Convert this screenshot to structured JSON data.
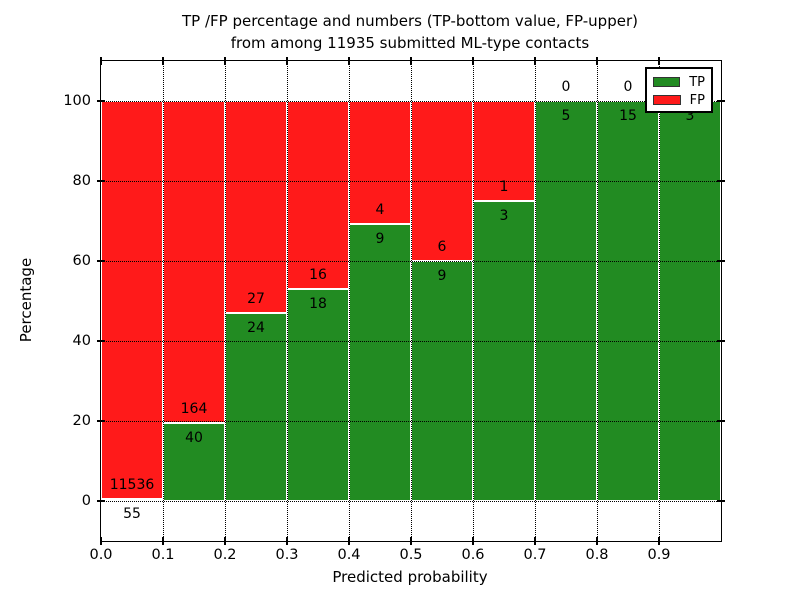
{
  "title": {
    "line1": "TP /FP percentage and numbers (TP-bottom value, FP-upper)",
    "line2": "from among 11935 submitted ML-type contacts"
  },
  "axis": {
    "xlabel": "Predicted probability",
    "ylabel": "Percentage"
  },
  "legend": {
    "tp_label": "TP",
    "fp_label": "FP"
  },
  "colors": {
    "tp_green": "#228B22",
    "fp_red": "#FF1A1A",
    "grid": "#000000",
    "bar_edge": "#ffffff"
  },
  "chart_data": {
    "type": "bar",
    "stacked": true,
    "normalized": "percent of bin total",
    "title": "TP /FP percentage and numbers (TP-bottom value, FP-upper) from among 11935 submitted ML-type contacts",
    "xlabel": "Predicted probability",
    "ylabel": "Percentage",
    "total_contacts": 11935,
    "categories": [
      "0.0-0.1",
      "0.1-0.2",
      "0.2-0.3",
      "0.3-0.4",
      "0.4-0.5",
      "0.5-0.6",
      "0.6-0.7",
      "0.7-0.8",
      "0.8-0.9",
      "0.9-1.0"
    ],
    "bin_edges": [
      0.0,
      0.1,
      0.2,
      0.3,
      0.4,
      0.5,
      0.6,
      0.7,
      0.8,
      0.9,
      1.0
    ],
    "series": [
      {
        "name": "TP",
        "color": "#228B22",
        "counts": [
          55,
          40,
          24,
          18,
          9,
          9,
          3,
          5,
          15,
          3
        ]
      },
      {
        "name": "FP",
        "color": "#FF1A1A",
        "counts": [
          11536,
          164,
          27,
          16,
          4,
          6,
          1,
          0,
          0,
          0
        ]
      }
    ],
    "tp_percent": [
      0.47,
      19.61,
      47.06,
      52.94,
      69.23,
      60.0,
      75.0,
      100.0,
      100.0,
      100.0
    ],
    "xticks": [
      "0.0",
      "0.1",
      "0.2",
      "0.3",
      "0.4",
      "0.5",
      "0.6",
      "0.7",
      "0.8",
      "0.9"
    ],
    "yticks": [
      0,
      20,
      40,
      60,
      80,
      100
    ],
    "xlim": [
      0.0,
      1.0
    ],
    "ylim": [
      -10,
      110
    ],
    "grid": "dotted black, both axes",
    "legend_position": "upper right",
    "note": "last bin TP label partially hidden behind legend; FP 0 label of last bin fully hidden"
  }
}
